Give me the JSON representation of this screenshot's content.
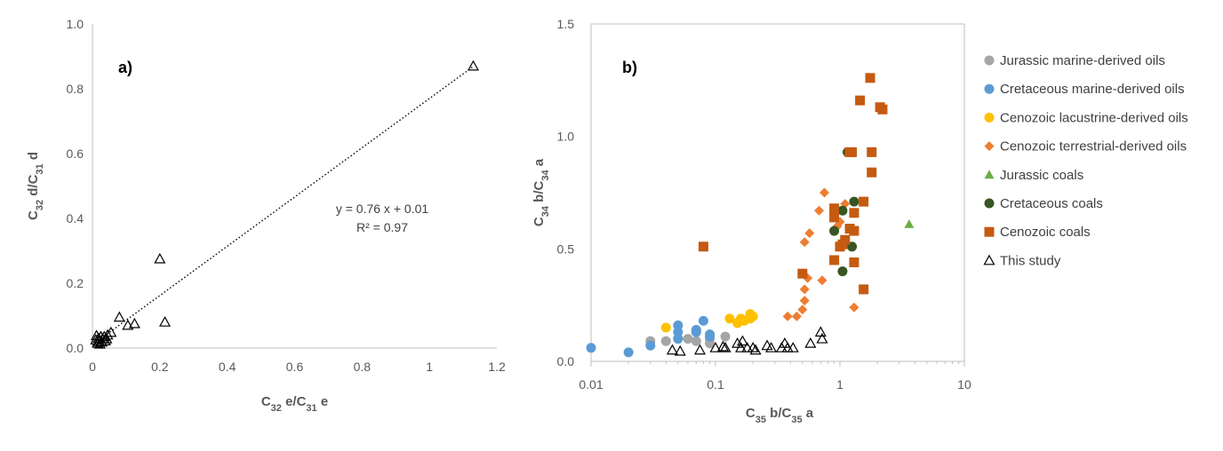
{
  "chart_data": [
    {
      "panel": "a)",
      "type": "scatter",
      "xlabel": {
        "parts": [
          [
            "C",
            ""
          ],
          [
            "32",
            "sub"
          ],
          [
            " e/C",
            ""
          ],
          [
            "31",
            "sub"
          ],
          [
            " e",
            ""
          ]
        ]
      },
      "ylabel": {
        "parts": [
          [
            "C",
            ""
          ],
          [
            "32",
            "sub"
          ],
          [
            " d/C",
            ""
          ],
          [
            "31",
            "sub"
          ],
          [
            " d",
            ""
          ]
        ]
      },
      "xlim": [
        0,
        1.2
      ],
      "ylim": [
        0,
        1.0
      ],
      "x_ticks": [
        "0",
        "0.2",
        "0.4",
        "0.6",
        "0.8",
        "1",
        "1.2"
      ],
      "x_tick_values": [
        0,
        0.2,
        0.4,
        0.6,
        0.8,
        1.0,
        1.2
      ],
      "y_ticks": [
        "0.0",
        "0.2",
        "0.4",
        "0.6",
        "0.8",
        "1.0"
      ],
      "y_tick_values": [
        0,
        0.2,
        0.4,
        0.6,
        0.8,
        1.0
      ],
      "trendline": {
        "slope": 0.76,
        "intercept": 0.01,
        "x_range": [
          0.0,
          1.13
        ]
      },
      "equation": "y = 0.76 x + 0.01",
      "r2_label": "R² = 0.97",
      "series": [
        {
          "marker": "open-triangle",
          "points": [
            [
              1.13,
              0.87
            ],
            [
              0.2,
              0.275
            ],
            [
              0.215,
              0.08
            ],
            [
              0.125,
              0.075
            ],
            [
              0.105,
              0.07
            ],
            [
              0.08,
              0.095
            ],
            [
              0.055,
              0.048
            ],
            [
              0.045,
              0.04
            ],
            [
              0.035,
              0.035
            ],
            [
              0.03,
              0.028
            ],
            [
              0.025,
              0.035
            ],
            [
              0.02,
              0.02
            ],
            [
              0.018,
              0.03
            ],
            [
              0.015,
              0.015
            ],
            [
              0.012,
              0.038
            ],
            [
              0.01,
              0.025
            ],
            [
              0.022,
              0.012
            ],
            [
              0.028,
              0.018
            ],
            [
              0.038,
              0.022
            ],
            [
              0.042,
              0.028
            ]
          ]
        }
      ]
    },
    {
      "panel": "b)",
      "type": "scatter",
      "x_scale": "log",
      "xlabel": {
        "parts": [
          [
            "C",
            ""
          ],
          [
            "35",
            "sub"
          ],
          [
            " b/C",
            ""
          ],
          [
            "35",
            "sub"
          ],
          [
            " a",
            ""
          ]
        ]
      },
      "ylabel": {
        "parts": [
          [
            "C",
            ""
          ],
          [
            "34",
            "sub"
          ],
          [
            " b/C",
            ""
          ],
          [
            "34",
            "sub"
          ],
          [
            " a",
            ""
          ]
        ]
      },
      "xlim": [
        0.01,
        10
      ],
      "ylim": [
        0,
        1.5
      ],
      "x_ticks": [
        "0.01",
        "0.1",
        "1",
        "10"
      ],
      "x_tick_values": [
        0.01,
        0.1,
        1,
        10
      ],
      "y_ticks": [
        "0.0",
        "0.5",
        "1.0",
        "1.5"
      ],
      "y_tick_values": [
        0,
        0.5,
        1.0,
        1.5
      ],
      "legend_position": "right",
      "series": [
        {
          "name": "Jurassic marine-derived oils",
          "marker": "circle",
          "color": "#A5A5A5",
          "points": [
            [
              0.03,
              0.09
            ],
            [
              0.04,
              0.09
            ],
            [
              0.05,
              0.1
            ],
            [
              0.06,
              0.1
            ],
            [
              0.07,
              0.09
            ],
            [
              0.09,
              0.08
            ],
            [
              0.09,
              0.1
            ],
            [
              0.12,
              0.11
            ]
          ]
        },
        {
          "name": "Cretaceous marine-derived oils",
          "marker": "circle",
          "color": "#5B9BD5",
          "points": [
            [
              0.01,
              0.06
            ],
            [
              0.02,
              0.04
            ],
            [
              0.03,
              0.07
            ],
            [
              0.05,
              0.16
            ],
            [
              0.05,
              0.13
            ],
            [
              0.05,
              0.1
            ],
            [
              0.07,
              0.14
            ],
            [
              0.07,
              0.13
            ],
            [
              0.08,
              0.18
            ],
            [
              0.09,
              0.12
            ],
            [
              0.09,
              0.11
            ]
          ]
        },
        {
          "name": "Cenozoic lacustrine-derived oils",
          "marker": "circle",
          "color": "#FFC000",
          "points": [
            [
              0.04,
              0.15
            ],
            [
              0.13,
              0.19
            ],
            [
              0.15,
              0.17
            ],
            [
              0.16,
              0.19
            ],
            [
              0.17,
              0.18
            ],
            [
              0.19,
              0.21
            ],
            [
              0.19,
              0.19
            ],
            [
              0.2,
              0.2
            ]
          ]
        },
        {
          "name": "Cenozoic terrestrial-derived oils",
          "marker": "diamond",
          "color": "#ED7D31",
          "points": [
            [
              0.38,
              0.2
            ],
            [
              0.45,
              0.2
            ],
            [
              0.5,
              0.23
            ],
            [
              0.52,
              0.27
            ],
            [
              0.52,
              0.32
            ],
            [
              0.55,
              0.37
            ],
            [
              0.52,
              0.53
            ],
            [
              0.57,
              0.57
            ],
            [
              0.68,
              0.67
            ],
            [
              0.72,
              0.36
            ],
            [
              0.75,
              0.75
            ],
            [
              1.3,
              0.24
            ],
            [
              0.95,
              0.6
            ],
            [
              1.0,
              0.62
            ],
            [
              1.1,
              0.7
            ]
          ]
        },
        {
          "name": "Jurassic coals",
          "marker": "triangle",
          "color": "#70AD47",
          "points": [
            [
              3.6,
              0.61
            ]
          ]
        },
        {
          "name": "Cretaceous coals",
          "marker": "circle",
          "color": "#375623",
          "points": [
            [
              1.05,
              0.67
            ],
            [
              1.15,
              0.93
            ],
            [
              1.3,
              0.71
            ],
            [
              0.9,
              0.58
            ],
            [
              1.05,
              0.4
            ],
            [
              1.25,
              0.51
            ],
            [
              1.2,
              0.59
            ]
          ]
        },
        {
          "name": "Cenozoic coals",
          "marker": "square",
          "color": "#C55A11",
          "points": [
            [
              0.08,
              0.51
            ],
            [
              0.5,
              0.39
            ],
            [
              0.9,
              0.45
            ],
            [
              0.9,
              0.64
            ],
            [
              0.9,
              0.68
            ],
            [
              1.0,
              0.51
            ],
            [
              1.05,
              0.52
            ],
            [
              1.1,
              0.54
            ],
            [
              1.2,
              0.59
            ],
            [
              1.2,
              0.93
            ],
            [
              1.25,
              0.93
            ],
            [
              1.3,
              0.66
            ],
            [
              1.3,
              0.58
            ],
            [
              1.3,
              0.44
            ],
            [
              1.45,
              1.16
            ],
            [
              1.55,
              0.71
            ],
            [
              1.55,
              0.32
            ],
            [
              1.75,
              1.26
            ],
            [
              1.8,
              0.93
            ],
            [
              1.8,
              0.84
            ],
            [
              2.1,
              1.13
            ],
            [
              2.2,
              1.12
            ]
          ]
        },
        {
          "name": "This study",
          "marker": "open-triangle",
          "color": "#000000",
          "points": [
            [
              0.045,
              0.05
            ],
            [
              0.052,
              0.045
            ],
            [
              0.075,
              0.05
            ],
            [
              0.1,
              0.06
            ],
            [
              0.115,
              0.065
            ],
            [
              0.12,
              0.06
            ],
            [
              0.15,
              0.08
            ],
            [
              0.16,
              0.06
            ],
            [
              0.165,
              0.09
            ],
            [
              0.18,
              0.06
            ],
            [
              0.2,
              0.06
            ],
            [
              0.21,
              0.05
            ],
            [
              0.26,
              0.07
            ],
            [
              0.28,
              0.06
            ],
            [
              0.34,
              0.06
            ],
            [
              0.36,
              0.08
            ],
            [
              0.38,
              0.06
            ],
            [
              0.42,
              0.06
            ],
            [
              0.58,
              0.08
            ],
            [
              0.7,
              0.13
            ],
            [
              0.72,
              0.1
            ]
          ]
        }
      ]
    }
  ]
}
